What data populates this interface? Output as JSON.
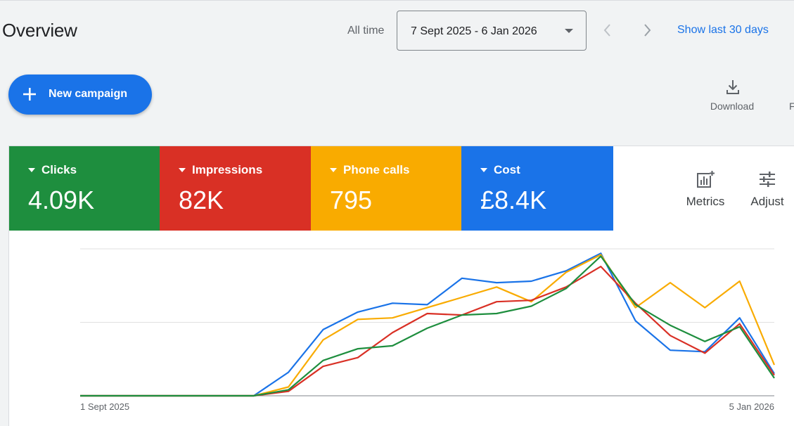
{
  "header": {
    "title": "Overview",
    "range_label": "All time",
    "date_range": "7 Sept 2025 - 6 Jan 2026",
    "show_last_label": "Show last 30 days"
  },
  "toolbar": {
    "new_campaign_label": "New campaign",
    "download_label": "Download",
    "edge_letter": "F"
  },
  "icons": [
    "plus-icon",
    "chevron-left-icon",
    "chevron-right-icon",
    "download-icon",
    "dropdown-arrow-icon",
    "metrics-chart-icon",
    "adjust-sliders-icon"
  ],
  "colors": {
    "accent_blue": "#1a73e8",
    "clicks": "#1e8e3e",
    "impressions": "#d93025",
    "phone_calls": "#f9ab00",
    "cost": "#1a73e8"
  },
  "metrics": [
    {
      "label": "Clicks",
      "value": "4.09K",
      "color": "#1e8e3e"
    },
    {
      "label": "Impressions",
      "value": "82K",
      "color": "#d93025"
    },
    {
      "label": "Phone calls",
      "value": "795",
      "color": "#f9ab00"
    },
    {
      "label": "Cost",
      "value": "£8.4K",
      "color": "#1a73e8"
    }
  ],
  "tools": {
    "metrics_label": "Metrics",
    "adjust_label": "Adjust"
  },
  "chart_data": {
    "type": "line",
    "x_start_label": "1 Sept 2025",
    "x_end_label": "5 Jan 2026",
    "grid": true,
    "ylim": [
      0,
      100
    ],
    "series": [
      {
        "name": "Cost",
        "color": "#1a73e8",
        "values": [
          0,
          0,
          0,
          0,
          0,
          0,
          16,
          45,
          57,
          63,
          62,
          80,
          77,
          78,
          85,
          97,
          51,
          31,
          30,
          53,
          15
        ]
      },
      {
        "name": "Phone calls",
        "color": "#f9ab00",
        "values": [
          0,
          0,
          0,
          0,
          0,
          0,
          6,
          38,
          52,
          53,
          60,
          67,
          74,
          64,
          84,
          96,
          60,
          77,
          60,
          78,
          21
        ]
      },
      {
        "name": "Impressions",
        "color": "#d93025",
        "values": [
          0,
          0,
          0,
          0,
          0,
          0,
          3,
          20,
          26,
          43,
          56,
          55,
          64,
          65,
          74,
          88,
          63,
          41,
          29,
          49,
          14
        ]
      },
      {
        "name": "Clicks",
        "color": "#1e8e3e",
        "values": [
          0,
          0,
          0,
          0,
          0,
          0,
          4,
          24,
          32,
          34,
          46,
          55,
          56,
          61,
          73,
          95,
          62,
          48,
          37,
          47,
          12
        ]
      }
    ]
  }
}
